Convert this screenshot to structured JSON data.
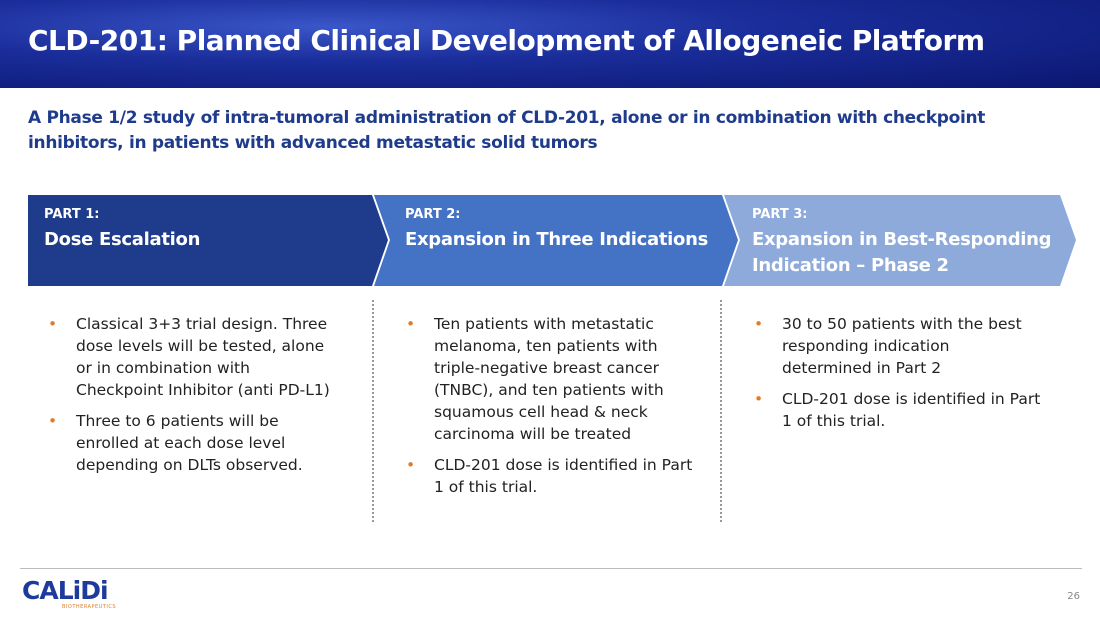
{
  "header": {
    "title": "CLD-201: Planned Clinical Development of Allogeneic Platform"
  },
  "subtitle": "A Phase 1/2 study of intra-tumoral administration of CLD-201, alone or in combination with checkpoint inhibitors, in patients with advanced metastatic solid tumors",
  "parts": [
    {
      "label": "PART 1:",
      "title": "Dose Escalation",
      "bullets": [
        "Classical 3+3 trial design. Three dose levels will be tested, alone or in combination with Checkpoint Inhibitor (anti PD-L1)",
        "Three to 6 patients will be enrolled at each dose level depending on DLTs observed."
      ]
    },
    {
      "label": "PART 2:",
      "title": "Expansion in Three Indications",
      "bullets": [
        "Ten patients with metastatic melanoma, ten patients with triple-negative breast cancer (TNBC), and ten patients with squamous cell head & neck carcinoma will be treated",
        "CLD-201 dose is identified in Part 1 of this trial."
      ]
    },
    {
      "label": "PART 3:",
      "title": "Expansion in Best-Responding Indication – Phase 2",
      "bullets": [
        "30 to 50 patients with the best responding indication determined in Part 2",
        "CLD-201 dose is identified in Part 1 of this trial."
      ]
    }
  ],
  "footer": {
    "logo": "CALiDi",
    "logo_sub": "BIOTHERAPEUTICS",
    "page_number": "26"
  }
}
